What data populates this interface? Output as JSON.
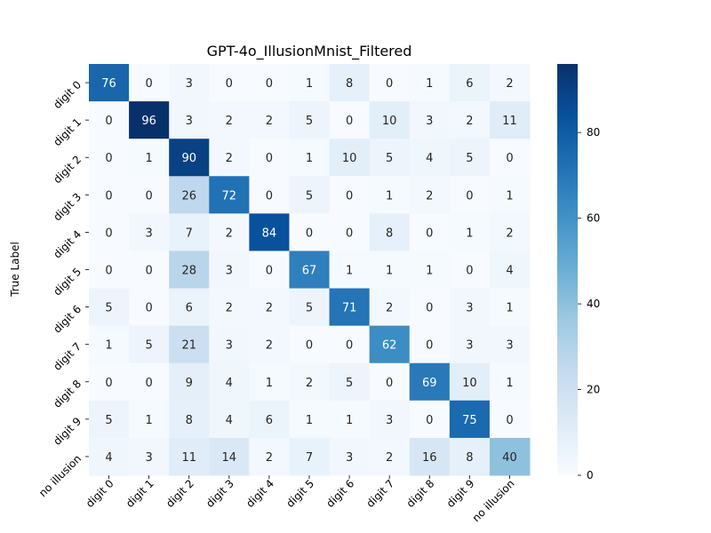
{
  "chart_data": {
    "type": "heatmap",
    "title": "GPT-4o_IllusionMnist_Filtered",
    "ylabel": "True Label",
    "xlabel": "",
    "x_categories": [
      "digit 0",
      "digit 1",
      "digit 2",
      "digit 3",
      "digit 4",
      "digit 5",
      "digit 6",
      "digit 7",
      "digit 8",
      "digit 9",
      "no illusion"
    ],
    "y_categories": [
      "digit 0",
      "digit 1",
      "digit 2",
      "digit 3",
      "digit 4",
      "digit 5",
      "digit 6",
      "digit 7",
      "digit 8",
      "digit 9",
      "no illusion"
    ],
    "values": [
      [
        76,
        0,
        3,
        0,
        0,
        1,
        8,
        0,
        1,
        6,
        2
      ],
      [
        0,
        96,
        3,
        2,
        2,
        5,
        0,
        10,
        3,
        2,
        11
      ],
      [
        0,
        1,
        90,
        2,
        0,
        1,
        10,
        5,
        4,
        5,
        0
      ],
      [
        0,
        0,
        26,
        72,
        0,
        5,
        0,
        1,
        2,
        0,
        1
      ],
      [
        0,
        3,
        7,
        2,
        84,
        0,
        0,
        8,
        0,
        1,
        2
      ],
      [
        0,
        0,
        28,
        3,
        0,
        67,
        1,
        1,
        1,
        0,
        4
      ],
      [
        5,
        0,
        6,
        2,
        2,
        5,
        71,
        2,
        0,
        3,
        1
      ],
      [
        1,
        5,
        21,
        3,
        2,
        0,
        0,
        62,
        0,
        3,
        3
      ],
      [
        0,
        0,
        9,
        4,
        1,
        2,
        5,
        0,
        69,
        10,
        1
      ],
      [
        5,
        1,
        8,
        4,
        6,
        1,
        1,
        3,
        0,
        75,
        0
      ],
      [
        4,
        3,
        11,
        14,
        2,
        7,
        3,
        2,
        16,
        8,
        40
      ]
    ],
    "colorbar": {
      "min": 0,
      "max": 96,
      "ticks": [
        0,
        20,
        40,
        60,
        80
      ]
    },
    "colormap": "Blues",
    "colors": {
      "low": "#f7fbff",
      "high": "#08306b"
    }
  }
}
